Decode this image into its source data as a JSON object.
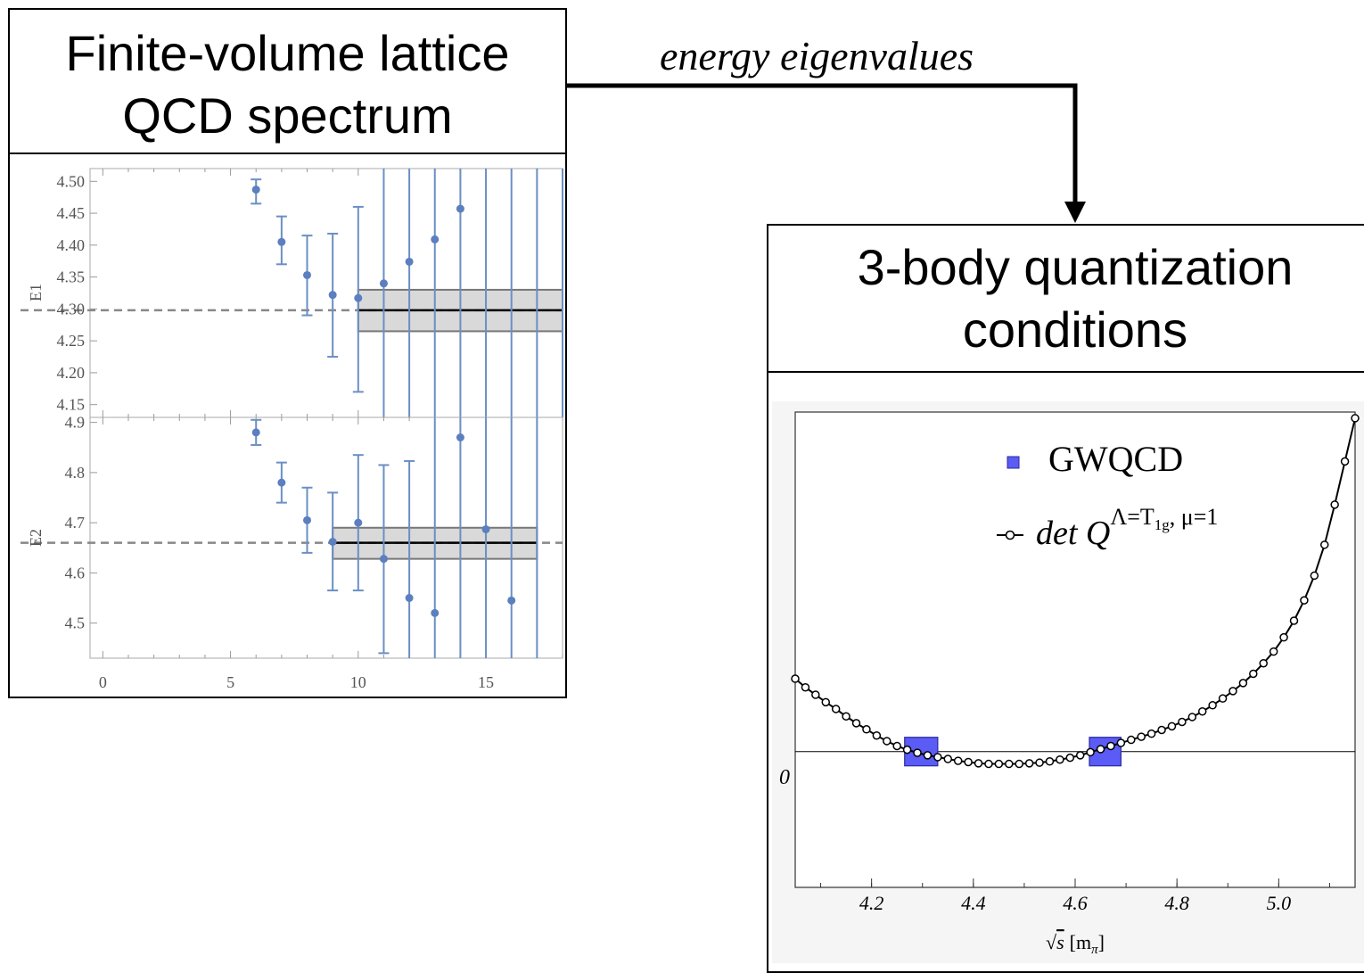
{
  "left_box": {
    "title_line1": "Finite-volume lattice",
    "title_line2": "QCD spectrum"
  },
  "right_box": {
    "title_line1": "3-body quantization",
    "title_line2": "conditions"
  },
  "arrow_label": "energy eigenvalues",
  "chart_data": [
    {
      "type": "scatter",
      "panel": "E1",
      "ylabel": "E1",
      "xlim": [
        -0.5,
        18
      ],
      "ylim": [
        4.13,
        4.52
      ],
      "yticks": [
        "4.15",
        "4.20",
        "4.25",
        "4.30",
        "4.35",
        "4.40",
        "4.45",
        "4.50"
      ],
      "points": [
        {
          "x": 6,
          "y": 4.487,
          "lo": 4.465,
          "hi": 4.503
        },
        {
          "x": 7,
          "y": 4.405,
          "lo": 4.37,
          "hi": 4.445
        },
        {
          "x": 8,
          "y": 4.353,
          "lo": 4.29,
          "hi": 4.415
        },
        {
          "x": 9,
          "y": 4.322,
          "lo": 4.225,
          "hi": 4.418
        },
        {
          "x": 10,
          "y": 4.317,
          "lo": 4.17,
          "hi": 4.46
        },
        {
          "x": 11,
          "y": 4.34,
          "lo": 4.0,
          "hi": 4.7
        },
        {
          "x": 12,
          "y": 4.374,
          "lo": 4.0,
          "hi": 4.7
        },
        {
          "x": 13,
          "y": 4.409,
          "lo": 4.0,
          "hi": 4.7
        },
        {
          "x": 14,
          "y": 4.457,
          "lo": 4.0,
          "hi": 4.7
        },
        {
          "x": 15,
          "y": null,
          "lo": 4.0,
          "hi": 4.7
        },
        {
          "x": 16,
          "y": null,
          "lo": 4.0,
          "hi": 4.7
        },
        {
          "x": 17,
          "y": null,
          "lo": 4.0,
          "hi": 4.7
        },
        {
          "x": 18,
          "y": null,
          "lo": 4.0,
          "hi": 4.7
        }
      ],
      "fit": {
        "value": 4.298,
        "lo": 4.265,
        "hi": 4.33,
        "xmin": 10,
        "xmax": 18
      }
    },
    {
      "type": "scatter",
      "panel": "E2",
      "ylabel": "E2",
      "xlim": [
        -0.5,
        18
      ],
      "xlabel": "",
      "ylim": [
        4.43,
        4.91
      ],
      "yticks": [
        "4.5",
        "4.6",
        "4.7",
        "4.8",
        "4.9"
      ],
      "xticks": [
        "0",
        "5",
        "10",
        "15"
      ],
      "points": [
        {
          "x": 6,
          "y": 4.88,
          "lo": 4.855,
          "hi": 4.905
        },
        {
          "x": 7,
          "y": 4.78,
          "lo": 4.74,
          "hi": 4.82
        },
        {
          "x": 8,
          "y": 4.705,
          "lo": 4.64,
          "hi": 4.77
        },
        {
          "x": 9,
          "y": 4.662,
          "lo": 4.565,
          "hi": 4.76
        },
        {
          "x": 10,
          "y": 4.7,
          "lo": 4.565,
          "hi": 4.835
        },
        {
          "x": 11,
          "y": 4.628,
          "lo": 4.44,
          "hi": 4.815
        },
        {
          "x": 12,
          "y": 4.55,
          "lo": 4.3,
          "hi": 4.823
        },
        {
          "x": 13,
          "y": 4.52,
          "lo": 4.3,
          "hi": 5.0
        },
        {
          "x": 14,
          "y": 4.87,
          "lo": 4.3,
          "hi": 5.0
        },
        {
          "x": 15,
          "y": 4.687,
          "lo": 4.3,
          "hi": 5.0
        },
        {
          "x": 16,
          "y": 4.545,
          "lo": 4.3,
          "hi": 5.0
        },
        {
          "x": 17,
          "y": null,
          "lo": 4.3,
          "hi": 5.0
        }
      ],
      "fit": {
        "value": 4.66,
        "lo": 4.628,
        "hi": 4.69,
        "xmin": 9,
        "xmax": 17
      }
    },
    {
      "type": "line",
      "panel": "quantization",
      "xlabel_root": "s",
      "xlabel_unit": "[m",
      "xlabel_sub": "π",
      "xlabel_close": "]",
      "xlim": [
        4.05,
        5.15
      ],
      "ylim": [
        -0.22,
        0.55
      ],
      "xticks": [
        "4.2",
        "4.4",
        "4.6",
        "4.8",
        "5.0"
      ],
      "ytick_zero": "0",
      "legend": {
        "gwqcd": "GWQCD",
        "det_prefix": "det Q",
        "det_sup": "Λ=T",
        "det_sup_sub": "1g",
        "det_sup_tail": ", μ=1"
      },
      "curve_x": [
        4.05,
        4.07,
        4.09,
        4.11,
        4.13,
        4.15,
        4.17,
        4.19,
        4.21,
        4.23,
        4.25,
        4.27,
        4.29,
        4.31,
        4.33,
        4.35,
        4.37,
        4.39,
        4.41,
        4.43,
        4.45,
        4.47,
        4.49,
        4.51,
        4.53,
        4.55,
        4.57,
        4.59,
        4.61,
        4.63,
        4.65,
        4.67,
        4.69,
        4.71,
        4.73,
        4.75,
        4.77,
        4.79,
        4.81,
        4.83,
        4.85,
        4.87,
        4.89,
        4.91,
        4.93,
        4.95,
        4.97,
        4.99,
        5.01,
        5.03,
        5.05,
        5.07,
        5.09,
        5.11,
        5.13,
        5.15
      ],
      "curve_y": [
        0.118,
        0.104,
        0.092,
        0.08,
        0.069,
        0.057,
        0.046,
        0.036,
        0.026,
        0.017,
        0.009,
        0.003,
        -0.002,
        -0.006,
        -0.009,
        -0.012,
        -0.015,
        -0.017,
        -0.019,
        -0.02,
        -0.02,
        -0.02,
        -0.02,
        -0.019,
        -0.018,
        -0.016,
        -0.013,
        -0.01,
        -0.006,
        -0.001,
        0.004,
        0.009,
        0.014,
        0.019,
        0.024,
        0.029,
        0.035,
        0.041,
        0.048,
        0.056,
        0.065,
        0.075,
        0.086,
        0.098,
        0.111,
        0.126,
        0.143,
        0.162,
        0.185,
        0.212,
        0.245,
        0.285,
        0.335,
        0.4,
        0.47,
        0.54
      ],
      "gwqcd_boxes": [
        {
          "x": 4.298,
          "lo": 4.265,
          "hi": 4.33
        },
        {
          "x": 4.66,
          "lo": 4.628,
          "hi": 4.69
        }
      ]
    }
  ]
}
